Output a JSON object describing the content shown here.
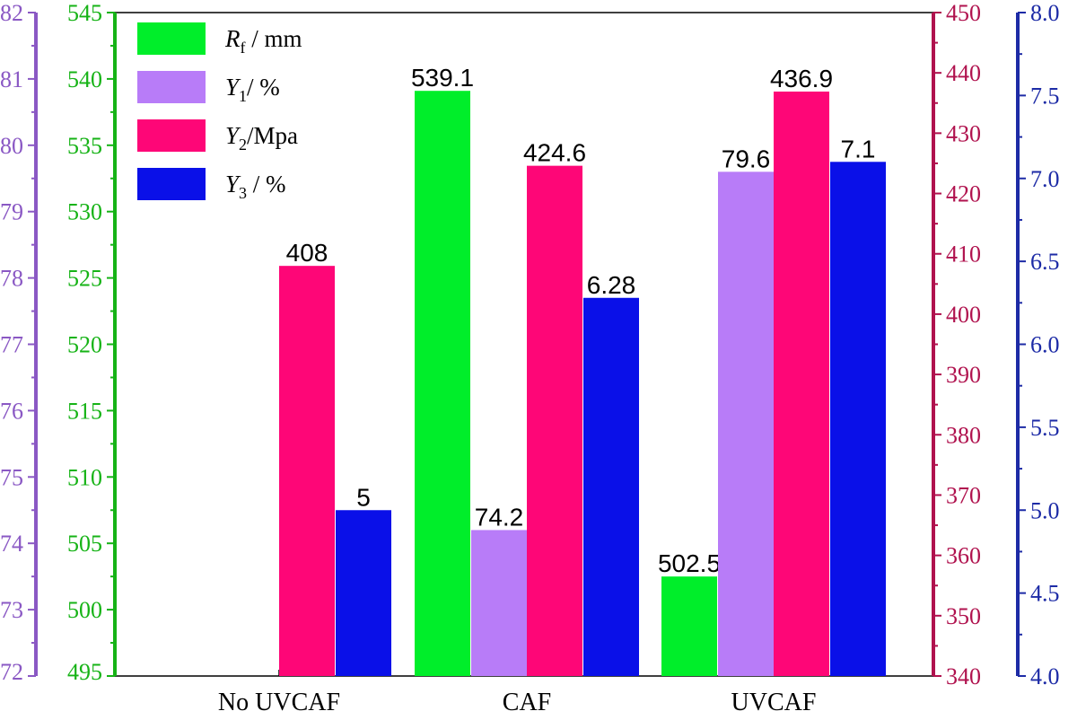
{
  "chart_data": {
    "type": "bar",
    "title": "",
    "categories": [
      "No UVCAF",
      "CAF",
      "UVCAF"
    ],
    "axes": [
      {
        "id": "left_outer",
        "color": "#8a58c4",
        "min": 72,
        "max": 82,
        "ticks": [
          72,
          73,
          74,
          75,
          76,
          77,
          78,
          79,
          80,
          81,
          82
        ],
        "labels": [
          "72",
          "73",
          "74",
          "75",
          "76",
          "77",
          "78",
          "79",
          "80",
          "81",
          "82"
        ]
      },
      {
        "id": "left_inner",
        "color": "#16b316",
        "min": 495,
        "max": 545,
        "ticks": [
          495,
          500,
          505,
          510,
          515,
          520,
          525,
          530,
          535,
          540,
          545
        ],
        "labels": [
          "495",
          "500",
          "505",
          "510",
          "515",
          "520",
          "525",
          "530",
          "535",
          "540",
          "545"
        ]
      },
      {
        "id": "right_inner",
        "color": "#b0124e",
        "min": 340,
        "max": 450,
        "ticks": [
          340,
          350,
          360,
          370,
          380,
          390,
          400,
          410,
          420,
          430,
          440,
          450
        ],
        "labels": [
          "340",
          "350",
          "360",
          "370",
          "380",
          "390",
          "400",
          "410",
          "420",
          "430",
          "440",
          "450"
        ]
      },
      {
        "id": "right_outer",
        "color": "#1d2ba6",
        "min": 4.0,
        "max": 8.0,
        "ticks": [
          4.0,
          4.5,
          5.0,
          5.5,
          6.0,
          6.5,
          7.0,
          7.5,
          8.0
        ],
        "labels": [
          "4.0",
          "4.5",
          "5.0",
          "5.5",
          "6.0",
          "6.5",
          "7.0",
          "7.5",
          "8.0"
        ]
      }
    ],
    "series": [
      {
        "key": "rf",
        "axis": "left_inner",
        "color": "#00ee2a",
        "legend_main": "R",
        "legend_sub": "f",
        "legend_rest": " / mm",
        "values": [
          null,
          539.1,
          502.5
        ],
        "labels": [
          "",
          "539.1",
          "502.5"
        ]
      },
      {
        "key": "y1",
        "axis": "left_outer",
        "color": "#b87cf8",
        "legend_main": "Y",
        "legend_sub": "1",
        "legend_rest": "/ %",
        "values": [
          null,
          74.2,
          79.6
        ],
        "labels": [
          "",
          "74.2",
          "79.6"
        ]
      },
      {
        "key": "y2",
        "axis": "right_inner",
        "color": "#fe0677",
        "legend_main": "Y",
        "legend_sub": "2",
        "legend_rest": "/Mpa",
        "values": [
          408,
          424.6,
          436.9
        ],
        "labels": [
          "408",
          "424.6",
          "436.9"
        ]
      },
      {
        "key": "y3",
        "axis": "right_outer",
        "color": "#0a10e8",
        "legend_main": "Y",
        "legend_sub": "3",
        "legend_rest": " / %",
        "values": [
          5,
          6.28,
          7.1
        ],
        "labels": [
          "5",
          "6.28",
          "7.1"
        ]
      }
    ],
    "legend_position": "top-left",
    "grid": false
  }
}
